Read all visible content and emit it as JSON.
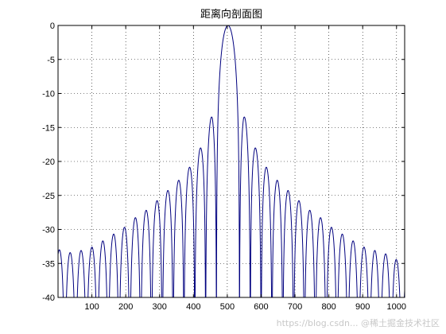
{
  "chart_data": {
    "type": "line",
    "title": "距离向剖面图",
    "xlabel": "",
    "ylabel": "",
    "xlim": [
      0,
      1024
    ],
    "ylim": [
      -40,
      0
    ],
    "xticks": [
      100,
      200,
      300,
      400,
      500,
      600,
      700,
      800,
      900,
      1000
    ],
    "yticks": [
      0,
      -5,
      -10,
      -15,
      -20,
      -25,
      -30,
      -35,
      -40
    ],
    "grid": true,
    "grid_style": "dotted",
    "line_color": "#00007f",
    "series": [
      {
        "peak_x": 502,
        "peak_db": 0,
        "first_null_offset": 34,
        "sidelobe_spacing": 32,
        "first_sidelobe_db": -13,
        "sidelobe_peaks_left": [
          {
            "x": 456,
            "db": -13.0
          },
          {
            "x": 426,
            "db": -17.5
          },
          {
            "x": 394,
            "db": -20.5
          },
          {
            "x": 362,
            "db": -22.5
          },
          {
            "x": 330,
            "db": -24.0
          },
          {
            "x": 298,
            "db": -25.5
          },
          {
            "x": 266,
            "db": -27.0
          },
          {
            "x": 234,
            "db": -28.0
          },
          {
            "x": 202,
            "db": -29.5
          },
          {
            "x": 170,
            "db": -30.5
          },
          {
            "x": 138,
            "db": -31.5
          },
          {
            "x": 106,
            "db": -32.5
          },
          {
            "x": 74,
            "db": -33.0
          },
          {
            "x": 42,
            "db": -33.5
          },
          {
            "x": 10,
            "db": -33.0
          }
        ],
        "sidelobe_peaks_right": [
          {
            "x": 548,
            "db": -13.0
          },
          {
            "x": 578,
            "db": -17.5
          },
          {
            "x": 610,
            "db": -20.5
          },
          {
            "x": 642,
            "db": -22.5
          },
          {
            "x": 674,
            "db": -24.0
          },
          {
            "x": 706,
            "db": -25.5
          },
          {
            "x": 738,
            "db": -27.0
          },
          {
            "x": 770,
            "db": -28.0
          },
          {
            "x": 802,
            "db": -29.5
          },
          {
            "x": 834,
            "db": -30.5
          },
          {
            "x": 866,
            "db": -31.5
          },
          {
            "x": 898,
            "db": -32.5
          },
          {
            "x": 930,
            "db": -33.0
          },
          {
            "x": 962,
            "db": -33.5
          },
          {
            "x": 994,
            "db": -34.0
          },
          {
            "x": 1020,
            "db": -36.0
          }
        ]
      }
    ]
  },
  "watermark": "https://blog.csdn... @稀土掘金技术社区"
}
